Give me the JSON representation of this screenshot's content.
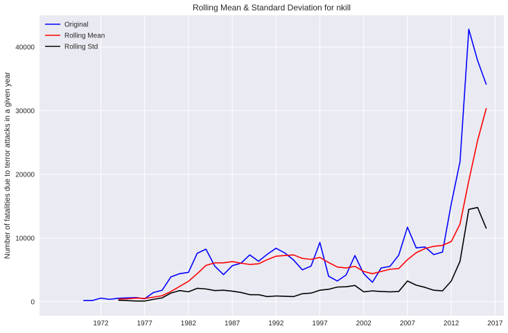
{
  "chart_data": {
    "type": "line",
    "title": "Rolling Mean & Standard Deviation for nkill",
    "xlabel": "",
    "ylabel": "Number of fatalities due to terror attacks in a given year",
    "xlim": [
      1965,
      2018
    ],
    "ylim": [
      -2200,
      45000
    ],
    "x_tick_values": [
      1972,
      1977,
      1982,
      1987,
      1992,
      1997,
      2002,
      2007,
      2012,
      2017
    ],
    "x_tick_labels": [
      "1972",
      "1977",
      "1982",
      "1987",
      "1992",
      "1997",
      "2002",
      "2007",
      "2012",
      "2017"
    ],
    "y_tick_values": [
      0,
      10000,
      20000,
      30000,
      40000
    ],
    "y_tick_labels": [
      "0",
      "10000",
      "20000",
      "30000",
      "40000"
    ],
    "grid": true,
    "legend_position": "top-left",
    "background_color": "#eaeaf2",
    "grid_color": "#ffffff",
    "series": [
      {
        "name": "Original",
        "color": "#0000ff",
        "x": [
          1970,
          1971,
          1972,
          1973,
          1974,
          1975,
          1976,
          1977,
          1978,
          1979,
          1980,
          1981,
          1982,
          1983,
          1984,
          1985,
          1986,
          1987,
          1988,
          1989,
          1990,
          1991,
          1992,
          1993,
          1994,
          1995,
          1996,
          1997,
          1998,
          1999,
          2000,
          2001,
          2002,
          2003,
          2004,
          2005,
          2006,
          2007,
          2008,
          2009,
          2010,
          2011,
          2012,
          2013,
          2014,
          2015,
          2016
        ],
        "values": [
          170,
          170,
          560,
          370,
          540,
          600,
          650,
          460,
          1440,
          1800,
          3900,
          4400,
          4600,
          7600,
          8250,
          5600,
          4250,
          5650,
          6050,
          7350,
          6350,
          7450,
          8400,
          7650,
          6550,
          5000,
          5600,
          9300,
          4000,
          3250,
          4200,
          7250,
          4400,
          3050,
          5300,
          5550,
          7300,
          11700,
          8450,
          8600,
          7400,
          7800,
          15400,
          22000,
          42800,
          37900,
          34100
        ]
      },
      {
        "name": "Rolling Mean",
        "color": "#ff0000",
        "x": [
          1974,
          1975,
          1976,
          1977,
          1978,
          1979,
          1980,
          1981,
          1982,
          1983,
          1984,
          1985,
          1986,
          1987,
          1988,
          1989,
          1990,
          1991,
          1992,
          1993,
          1994,
          1995,
          1996,
          1997,
          1998,
          1999,
          2000,
          2001,
          2002,
          2003,
          2004,
          2005,
          2006,
          2007,
          2008,
          2009,
          2010,
          2011,
          2012,
          2013,
          2014,
          2015,
          2016
        ],
        "values": [
          390,
          450,
          570,
          510,
          710,
          940,
          1600,
          2400,
          3200,
          4400,
          5700,
          6100,
          6100,
          6300,
          6050,
          5850,
          5950,
          6600,
          7150,
          7250,
          7350,
          6800,
          6650,
          6950,
          6150,
          5450,
          5300,
          5550,
          4750,
          4400,
          4750,
          5100,
          5200,
          6600,
          7700,
          8350,
          8700,
          8850,
          9450,
          12200,
          19000,
          25300,
          30400
        ]
      },
      {
        "name": "Rolling Std",
        "color": "#000000",
        "x": [
          1974,
          1975,
          1976,
          1977,
          1978,
          1979,
          1980,
          1981,
          1982,
          1983,
          1984,
          1985,
          1986,
          1987,
          1988,
          1989,
          1990,
          1991,
          1992,
          1993,
          1994,
          1995,
          1996,
          1997,
          1998,
          1999,
          2000,
          2001,
          2002,
          2003,
          2004,
          2005,
          2006,
          2007,
          2008,
          2009,
          2010,
          2011,
          2012,
          2013,
          2014,
          2015,
          2016
        ],
        "values": [
          220,
          170,
          100,
          100,
          370,
          600,
          1350,
          1750,
          1550,
          2100,
          2000,
          1750,
          1800,
          1650,
          1450,
          1100,
          1100,
          800,
          900,
          850,
          800,
          1250,
          1350,
          1800,
          1950,
          2300,
          2350,
          2550,
          1550,
          1700,
          1600,
          1550,
          1600,
          3250,
          2600,
          2250,
          1800,
          1700,
          3250,
          6350,
          14500,
          14800,
          11500
        ]
      }
    ]
  }
}
